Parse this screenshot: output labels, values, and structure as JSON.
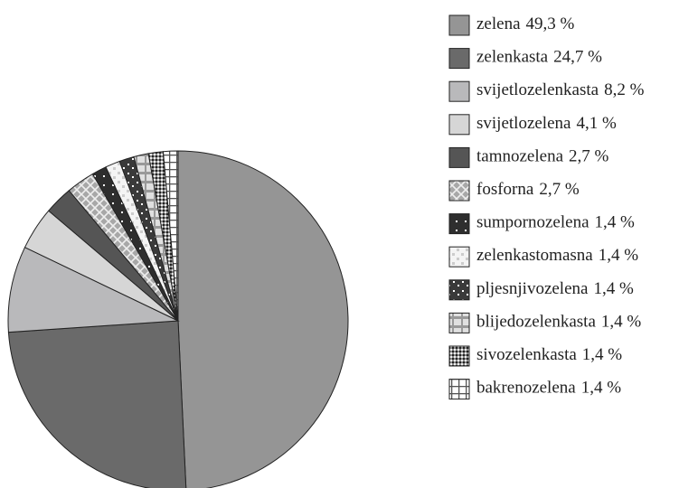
{
  "chart_data": {
    "type": "pie",
    "categories": [
      "zelena",
      "zelenkasta",
      "svijetlozelenkasta",
      "svijetlozelena",
      "tamnozelena",
      "fosforna",
      "sumpornozelena",
      "zelenkastomasna",
      "pljesnjivozelena",
      "blijedozelenkasta",
      "sivozelenkasta",
      "bakrenozelena"
    ],
    "values": [
      49.3,
      24.7,
      8.2,
      4.1,
      2.7,
      2.7,
      1.4,
      1.4,
      1.4,
      1.4,
      1.4,
      1.4
    ],
    "value_labels": [
      "49,3 %",
      "24,7 %",
      "8,2 %",
      "4,1 %",
      "2,7 %",
      "2,7 %",
      "1,4 %",
      "1,4 %",
      "1,4 %",
      "1,4 %",
      "1,4 %",
      "1,4 %"
    ],
    "colors": [
      "#959595",
      "#6a6a6a",
      "#b9b9bb",
      "#d6d6d6",
      "#555555",
      "#a8a8a8",
      "#2e2e2e",
      "#f4f4f4",
      "#3a3a3a",
      "#e0e0e0",
      "#8a8a8a",
      "#ffffff"
    ],
    "patterns": [
      "solid",
      "solid",
      "solid",
      "solid",
      "solid",
      "diamond",
      "dots",
      "checker",
      "speckle",
      "frame",
      "fine",
      "grid"
    ],
    "legend": "right"
  }
}
